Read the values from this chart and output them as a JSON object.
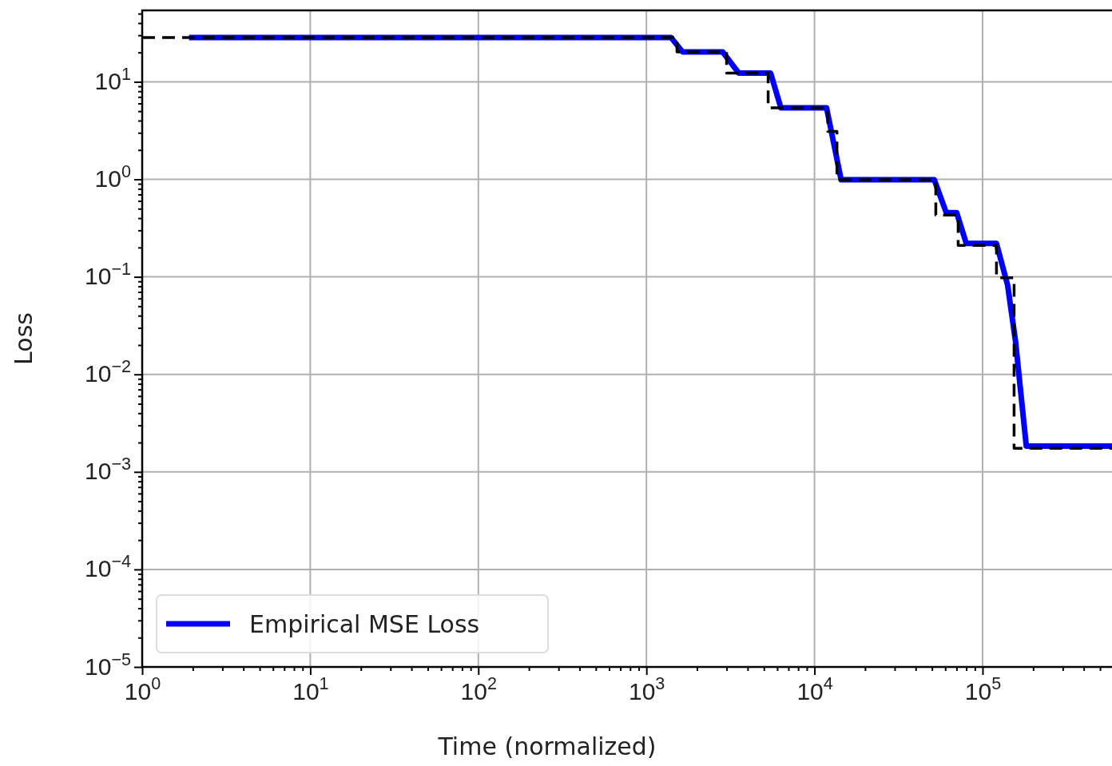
{
  "chart_data": {
    "type": "line",
    "xlabel": "Time (normalized)",
    "ylabel": "Loss",
    "log": "xy",
    "grid": true,
    "legend": "bottom left",
    "xlim": [
      1,
      589000
    ],
    "ylim": [
      1e-05,
      54
    ],
    "xticks": [
      {
        "value": 1,
        "label": "10$^{0}$"
      },
      {
        "value": 2,
        "label": null
      },
      {
        "value": 3,
        "label": null
      },
      {
        "value": 4,
        "label": null
      },
      {
        "value": 5,
        "label": null
      },
      {
        "value": 6,
        "label": null
      },
      {
        "value": 7,
        "label": null
      },
      {
        "value": 8,
        "label": null
      },
      {
        "value": 9,
        "label": null
      },
      {
        "value": 10,
        "label": "10$^{1}$"
      },
      {
        "value": 20,
        "label": null
      },
      {
        "value": 30,
        "label": null
      },
      {
        "value": 40,
        "label": null
      },
      {
        "value": 50,
        "label": null
      },
      {
        "value": 60,
        "label": null
      },
      {
        "value": 70,
        "label": null
      },
      {
        "value": 80,
        "label": null
      },
      {
        "value": 90,
        "label": null
      },
      {
        "value": 100,
        "label": "10$^{2}$"
      },
      {
        "value": 200,
        "label": null
      },
      {
        "value": 300,
        "label": null
      },
      {
        "value": 400,
        "label": null
      },
      {
        "value": 500,
        "label": null
      },
      {
        "value": 600,
        "label": null
      },
      {
        "value": 700,
        "label": null
      },
      {
        "value": 800,
        "label": null
      },
      {
        "value": 900,
        "label": null
      },
      {
        "value": 1000,
        "label": "10$^{3}$"
      },
      {
        "value": 2000,
        "label": null
      },
      {
        "value": 3000,
        "label": null
      },
      {
        "value": 4000,
        "label": null
      },
      {
        "value": 5000,
        "label": null
      },
      {
        "value": 6000,
        "label": null
      },
      {
        "value": 7000,
        "label": null
      },
      {
        "value": 8000,
        "label": null
      },
      {
        "value": 9000,
        "label": null
      },
      {
        "value": 10000,
        "label": "10$^{4}$"
      },
      {
        "value": 20000,
        "label": null
      },
      {
        "value": 30000,
        "label": null
      },
      {
        "value": 40000,
        "label": null
      },
      {
        "value": 50000,
        "label": null
      },
      {
        "value": 60000,
        "label": null
      },
      {
        "value": 70000,
        "label": null
      },
      {
        "value": 80000,
        "label": null
      },
      {
        "value": 90000,
        "label": null
      },
      {
        "value": 100000,
        "label": "10$^{5}$"
      },
      {
        "value": 200000,
        "label": null
      },
      {
        "value": 300000,
        "label": null
      },
      {
        "value": 400000,
        "label": null
      },
      {
        "value": 500000,
        "label": null
      }
    ],
    "yticks": [
      {
        "value": 1e-05,
        "label": "10$^{−5}$"
      },
      {
        "value": 2e-05,
        "label": null
      },
      {
        "value": 3e-05,
        "label": null
      },
      {
        "value": 4e-05,
        "label": null
      },
      {
        "value": 5e-05,
        "label": null
      },
      {
        "value": 6e-05,
        "label": null
      },
      {
        "value": 7e-05,
        "label": null
      },
      {
        "value": 8e-05,
        "label": null
      },
      {
        "value": 9e-05,
        "label": null
      },
      {
        "value": 0.0001,
        "label": "10$^{−4}$"
      },
      {
        "value": 0.0002,
        "label": null
      },
      {
        "value": 0.0003,
        "label": null
      },
      {
        "value": 0.0004,
        "label": null
      },
      {
        "value": 0.0005,
        "label": null
      },
      {
        "value": 0.0006,
        "label": null
      },
      {
        "value": 0.0007,
        "label": null
      },
      {
        "value": 0.0008,
        "label": null
      },
      {
        "value": 0.0009,
        "label": null
      },
      {
        "value": 0.001,
        "label": "10$^{−3}$"
      },
      {
        "value": 0.002,
        "label": null
      },
      {
        "value": 0.003,
        "label": null
      },
      {
        "value": 0.004,
        "label": null
      },
      {
        "value": 0.005,
        "label": null
      },
      {
        "value": 0.006,
        "label": null
      },
      {
        "value": 0.007,
        "label": null
      },
      {
        "value": 0.008,
        "label": null
      },
      {
        "value": 0.009,
        "label": null
      },
      {
        "value": 0.01,
        "label": "10$^{−2}$"
      },
      {
        "value": 0.02,
        "label": null
      },
      {
        "value": 0.03,
        "label": null
      },
      {
        "value": 0.04,
        "label": null
      },
      {
        "value": 0.05,
        "label": null
      },
      {
        "value": 0.06,
        "label": null
      },
      {
        "value": 0.07,
        "label": null
      },
      {
        "value": 0.08,
        "label": null
      },
      {
        "value": 0.09,
        "label": null
      },
      {
        "value": 0.1,
        "label": "10$^{−1}$"
      },
      {
        "value": 0.2,
        "label": null
      },
      {
        "value": 0.3,
        "label": null
      },
      {
        "value": 0.4,
        "label": null
      },
      {
        "value": 0.5,
        "label": null
      },
      {
        "value": 0.6,
        "label": null
      },
      {
        "value": 0.7,
        "label": null
      },
      {
        "value": 0.8,
        "label": null
      },
      {
        "value": 0.9,
        "label": null
      },
      {
        "value": 1,
        "label": "10$^{0}$"
      },
      {
        "value": 2,
        "label": null
      },
      {
        "value": 3,
        "label": null
      },
      {
        "value": 4,
        "label": null
      },
      {
        "value": 5,
        "label": null
      },
      {
        "value": 6,
        "label": null
      },
      {
        "value": 7,
        "label": null
      },
      {
        "value": 8,
        "label": null
      },
      {
        "value": 9,
        "label": null
      },
      {
        "value": 10,
        "label": "10$^{1}$"
      },
      {
        "value": 20,
        "label": null
      },
      {
        "value": 30,
        "label": null
      },
      {
        "value": 40,
        "label": null
      },
      {
        "value": 50,
        "label": null
      }
    ],
    "series": [
      {
        "name": "Empirical MSE Loss",
        "type": "line",
        "color": "#0000ff",
        "line_style": "solid",
        "x": [
          1.9,
          1400,
          1640,
          2840,
          3540,
          5480,
          6310,
          11800,
          14400,
          51600,
          60800,
          70100,
          80000,
          121000,
          141000,
          157000,
          182000,
          589000
        ],
        "values": [
          28.5,
          28.5,
          20.3,
          20.3,
          12.3,
          12.3,
          5.4,
          5.4,
          0.99,
          0.99,
          0.456,
          0.456,
          0.22,
          0.22,
          0.082,
          0.022,
          0.00184,
          0.00184
        ]
      },
      {
        "type": "step",
        "color": "#000000",
        "line_style": "dashed",
        "x": [
          1,
          1520,
          3000,
          5300,
          12000,
          13600,
          52700,
          71600,
          121000,
          154000,
          589000
        ],
        "values": [
          28.5,
          20.3,
          12.3,
          5.4,
          3.1,
          0.99,
          0.43,
          0.21,
          0.098,
          0.00175,
          0.00175
        ]
      }
    ]
  }
}
